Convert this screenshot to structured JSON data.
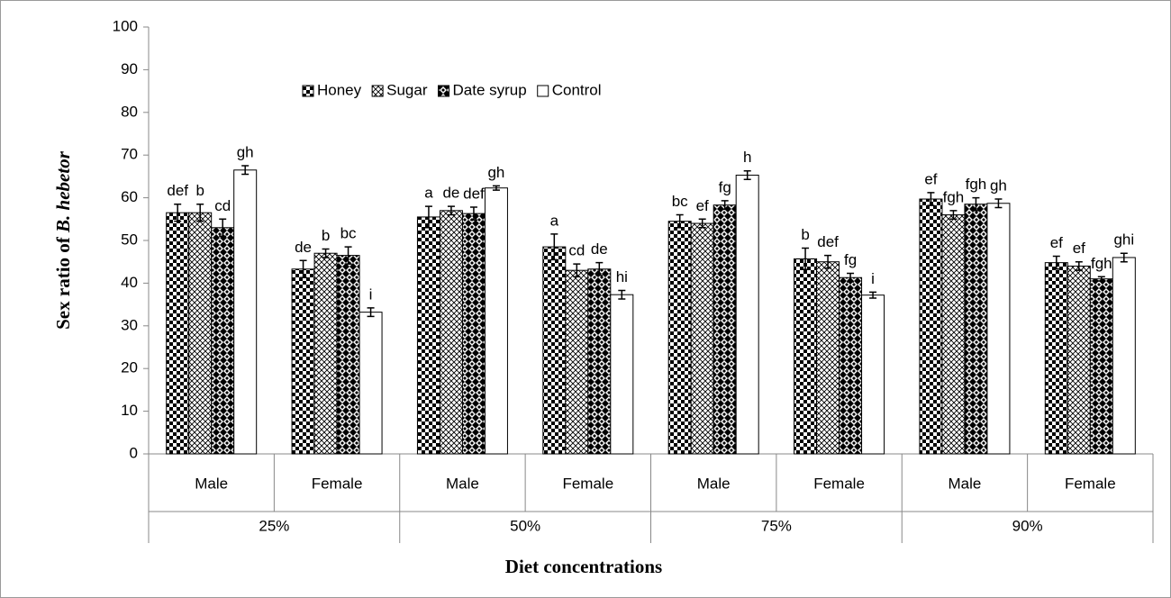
{
  "chart_data": {
    "type": "bar",
    "ylabel": {
      "text": "Sex ratio of ",
      "italic": "B. hebetor"
    },
    "xlabel": "Diet concentrations",
    "categories": [
      "Male",
      "Female",
      "Male",
      "Female",
      "Male",
      "Female",
      "Male",
      "Female"
    ],
    "groups": [
      "25%",
      "50%",
      "75%",
      "90%"
    ],
    "ylim": [
      0,
      100
    ],
    "yticks": [
      0,
      10,
      20,
      30,
      40,
      50,
      60,
      70,
      80,
      90,
      100
    ],
    "legend": "top",
    "series": [
      {
        "name": "Honey",
        "pattern": "checker",
        "color": "#000000",
        "values": [
          56.5,
          43.3,
          55.5,
          48.5,
          54.5,
          45.7,
          59.7,
          44.8
        ],
        "errors": [
          2,
          2,
          2.5,
          3,
          1.5,
          2.5,
          1.5,
          1.5
        ],
        "labels": [
          "def",
          "de",
          "a",
          "a",
          "bc",
          "b",
          "ef",
          "ef"
        ]
      },
      {
        "name": "Sugar",
        "pattern": "crosshatch",
        "color": "#000000",
        "values": [
          56.5,
          47,
          57,
          43,
          54,
          45,
          56,
          44
        ],
        "errors": [
          2,
          1,
          1,
          1.5,
          1,
          1.5,
          1,
          1
        ],
        "labels": [
          "b",
          "b",
          "de",
          "cd",
          "ef",
          "def",
          "fgh",
          "ef"
        ]
      },
      {
        "name": "Date syrup",
        "pattern": "diamond",
        "color": "#000000",
        "values": [
          53,
          46.5,
          56.3,
          43.3,
          58.3,
          41.3,
          58.5,
          41
        ],
        "errors": [
          2,
          2,
          1.5,
          1.5,
          1,
          1,
          1.5,
          0.5
        ],
        "labels": [
          "cd",
          "bc",
          "def",
          "de",
          "fg",
          "fg",
          "fgh",
          "fgh"
        ]
      },
      {
        "name": "Control",
        "pattern": "none",
        "color": "#ffffff",
        "values": [
          66.5,
          33.2,
          62.3,
          37.3,
          65.3,
          37.2,
          58.7,
          46
        ],
        "errors": [
          1,
          1,
          0.5,
          1,
          1,
          0.7,
          1,
          1
        ],
        "labels": [
          "gh",
          "i",
          "gh",
          "hi",
          "h",
          "i",
          "gh",
          "ghi"
        ]
      }
    ]
  }
}
